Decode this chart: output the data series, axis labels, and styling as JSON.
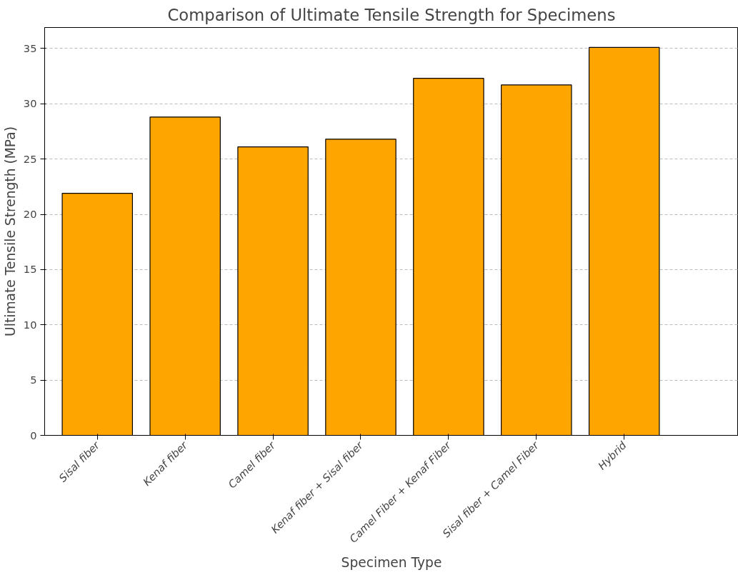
{
  "chart_data": {
    "type": "bar",
    "title": "Comparison of Ultimate Tensile Strength for Specimens",
    "xlabel": "Specimen Type",
    "ylabel": "Ultimate Tensile Strength (MPa)",
    "categories": [
      "Sisal fiber",
      "Kenaf fiber",
      "Camel fiber",
      "Kenaf fiber + Sisal fiber",
      "Camel Fiber + Kenaf Fiber",
      "Sisal fiber + Camel Fiber",
      "Hybrid"
    ],
    "values": [
      21.9,
      28.8,
      26.1,
      26.8,
      32.3,
      31.7,
      35.1
    ],
    "color": "#ffa500",
    "ylim": [
      0,
      36.9
    ],
    "yticks": [
      0,
      5,
      10,
      15,
      20,
      25,
      30,
      35
    ],
    "grid": "y"
  }
}
